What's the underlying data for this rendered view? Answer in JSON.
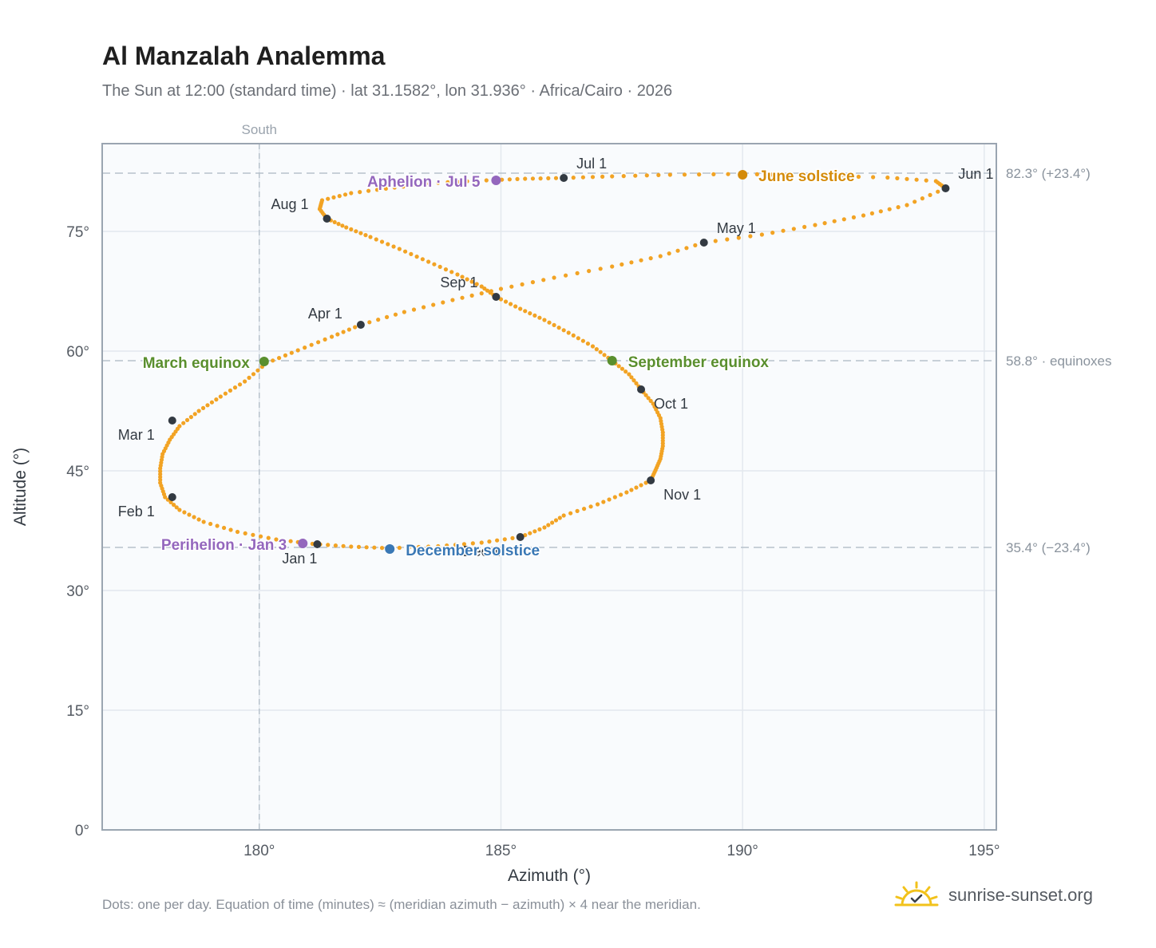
{
  "header": {
    "title": "Al Manzalah Analemma",
    "subtitle": "The Sun at 12:00 (standard time) · lat 31.1582°, lon 31.936° · Africa/Cairo · 2026"
  },
  "footer": {
    "note": "Dots: one per day. Equation of time (minutes) ≈ (meridian azimuth − azimuth) × 4 near the meridian.",
    "brand": "sunrise-sunset.org"
  },
  "colors": {
    "curve": "#f2a324",
    "month_marker": "#333a42",
    "equinox": "#5a8f2e",
    "june_solstice": "#d48b0a",
    "december_solstice": "#3a78b5",
    "apsis": "#9467bd",
    "reference_line": "#b7c2cc",
    "plot_background": "#f9fbfd",
    "frame": "#9aa5b1"
  },
  "chart_data": {
    "type": "scatter",
    "xlabel": "Azimuth (°)",
    "ylabel": "Altitude (°)",
    "xlim": [
      176.75,
      195.25
    ],
    "ylim": [
      0,
      86
    ],
    "xticks": [
      180,
      185,
      190,
      195
    ],
    "xtick_labels": [
      "180°",
      "185°",
      "190°",
      "195°"
    ],
    "yticks": [
      0,
      15,
      30,
      45,
      60,
      75
    ],
    "ytick_labels": [
      "0°",
      "15°",
      "30°",
      "45°",
      "60°",
      "75°"
    ],
    "grid": true,
    "meridian": {
      "azimuth": 180,
      "label": "South"
    },
    "reference_lines": [
      {
        "altitude": 82.3,
        "label": "82.3° (+23.4°)"
      },
      {
        "altitude": 58.8,
        "label": "58.8° · equinoxes"
      },
      {
        "altitude": 35.4,
        "label": "35.4° (−23.4°)"
      }
    ],
    "months": [
      {
        "label": "Jan 1",
        "azimuth": 181.2,
        "altitude": 35.8
      },
      {
        "label": "Feb 1",
        "azimuth": 178.2,
        "altitude": 41.7
      },
      {
        "label": "Mar 1",
        "azimuth": 178.2,
        "altitude": 51.3
      },
      {
        "label": "Apr 1",
        "azimuth": 182.1,
        "altitude": 63.3
      },
      {
        "label": "May 1",
        "azimuth": 189.2,
        "altitude": 73.6
      },
      {
        "label": "Jun 1",
        "azimuth": 194.2,
        "altitude": 80.4
      },
      {
        "label": "Jul 1",
        "azimuth": 186.3,
        "altitude": 81.7
      },
      {
        "label": "Aug 1",
        "azimuth": 181.4,
        "altitude": 76.6
      },
      {
        "label": "Sep 1",
        "azimuth": 184.9,
        "altitude": 66.8
      },
      {
        "label": "Oct 1",
        "azimuth": 187.9,
        "altitude": 55.2
      },
      {
        "label": "Nov 1",
        "azimuth": 188.1,
        "altitude": 43.8
      },
      {
        "label": "Dec 1",
        "azimuth": 185.4,
        "altitude": 36.7
      }
    ],
    "events": [
      {
        "label": "March equinox",
        "azimuth": 180.1,
        "altitude": 58.7,
        "color_key": "equinox"
      },
      {
        "label": "June solstice",
        "azimuth": 190.0,
        "altitude": 82.1,
        "color_key": "june_solstice"
      },
      {
        "label": "September equinox",
        "azimuth": 187.3,
        "altitude": 58.8,
        "color_key": "equinox"
      },
      {
        "label": "December solstice",
        "azimuth": 182.7,
        "altitude": 35.2,
        "color_key": "december_solstice"
      },
      {
        "label": "Perihelion · Jan 3",
        "azimuth": 180.9,
        "altitude": 35.9,
        "color_key": "apsis"
      },
      {
        "label": "Aphelion · Jul 5",
        "azimuth": 184.9,
        "altitude": 81.4,
        "color_key": "apsis"
      }
    ],
    "series": [
      {
        "points": [
          [
            181.1,
            35.85
          ],
          [
            180.35,
            36.4
          ],
          [
            179.55,
            37.35
          ],
          [
            178.85,
            38.6
          ],
          [
            178.35,
            40.1
          ],
          [
            178.05,
            41.7
          ],
          [
            177.95,
            43.5
          ],
          [
            177.95,
            45.3
          ],
          [
            178.0,
            47.1
          ],
          [
            178.15,
            48.9
          ],
          [
            178.35,
            50.6
          ],
          [
            178.75,
            52.5
          ],
          [
            179.2,
            54.3
          ],
          [
            179.7,
            56.2
          ],
          [
            180.15,
            58.5
          ],
          [
            180.8,
            60.1
          ],
          [
            181.5,
            61.8
          ],
          [
            182.1,
            63.3
          ],
          [
            183.0,
            64.9
          ],
          [
            184.0,
            66.4
          ],
          [
            185.0,
            67.8
          ],
          [
            186.1,
            69.2
          ],
          [
            187.3,
            70.6
          ],
          [
            188.3,
            71.9
          ],
          [
            189.2,
            73.6
          ],
          [
            190.4,
            74.6
          ],
          [
            191.5,
            75.8
          ],
          [
            192.5,
            77.0
          ],
          [
            193.4,
            78.3
          ],
          [
            194.2,
            80.4
          ],
          [
            194.0,
            81.3
          ],
          [
            193.0,
            81.75
          ],
          [
            191.5,
            82.0
          ],
          [
            190.0,
            82.2
          ],
          [
            188.5,
            82.1
          ],
          [
            187.3,
            81.9
          ],
          [
            186.3,
            81.7
          ],
          [
            185.5,
            81.6
          ],
          [
            184.7,
            81.4
          ],
          [
            183.7,
            81.1
          ],
          [
            182.8,
            80.5
          ],
          [
            181.9,
            79.8
          ],
          [
            181.3,
            78.9
          ],
          [
            181.25,
            77.8
          ],
          [
            181.4,
            76.6
          ],
          [
            181.8,
            75.5
          ],
          [
            182.3,
            74.3
          ],
          [
            182.9,
            72.8
          ],
          [
            183.5,
            71.2
          ],
          [
            184.1,
            69.6
          ],
          [
            184.6,
            68.1
          ],
          [
            184.9,
            66.8
          ],
          [
            185.4,
            65.3
          ],
          [
            185.9,
            63.9
          ],
          [
            186.4,
            62.3
          ],
          [
            186.9,
            60.6
          ],
          [
            187.3,
            58.8
          ],
          [
            187.65,
            57.1
          ],
          [
            187.9,
            55.2
          ],
          [
            188.15,
            53.4
          ],
          [
            188.3,
            51.6
          ],
          [
            188.35,
            49.8
          ],
          [
            188.35,
            48.1
          ],
          [
            188.3,
            46.5
          ],
          [
            188.2,
            45.1
          ],
          [
            188.1,
            43.8
          ],
          [
            187.6,
            42.3
          ],
          [
            187.0,
            40.8
          ],
          [
            186.3,
            39.4
          ],
          [
            185.9,
            37.9
          ],
          [
            185.4,
            36.7
          ],
          [
            184.6,
            36.0
          ],
          [
            183.7,
            35.55
          ],
          [
            182.7,
            35.3
          ],
          [
            181.9,
            35.5
          ],
          [
            181.1,
            35.85
          ]
        ]
      }
    ]
  }
}
